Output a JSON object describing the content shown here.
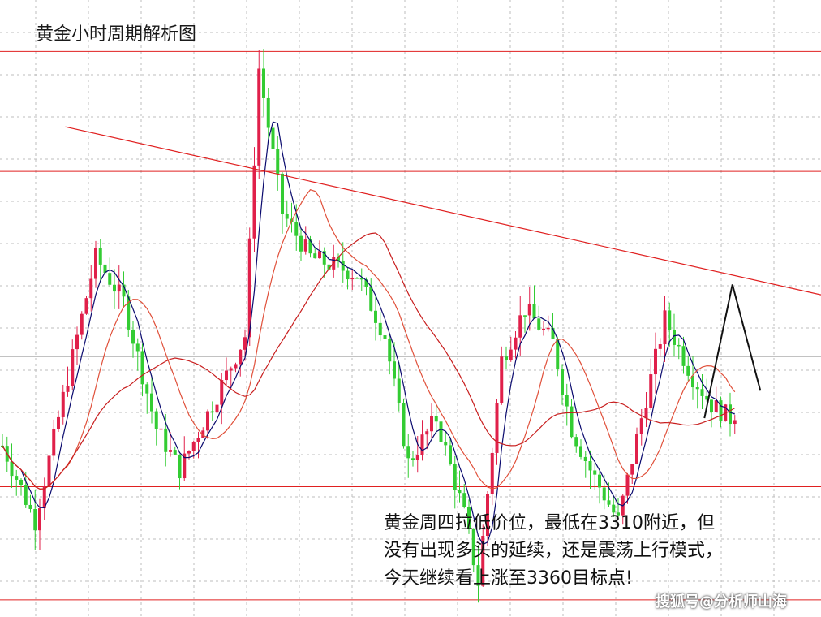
{
  "title": "黄金小时周期解析图",
  "note_lines": [
    "黄金周四拉低价位，最低在3310附近，但",
    "没有出现多头的延续，还是震荡上行模式，",
    "今天继续看上涨至3360目标点!"
  ],
  "watermark": "搜狐号@分析师山海",
  "colors": {
    "up": "#e0204a",
    "down": "#33cc33",
    "ma_fast": "#0a0a6e",
    "ma_mid": "#e0503a",
    "ma_slow": "#c81e1e",
    "level_line": "#e02020",
    "trend_line": "#e02020",
    "projection": "#111111",
    "grid": "#bdbdbd"
  },
  "chart_data": {
    "type": "candlestick",
    "title": "黄金小时周期解析图",
    "y_unit": "price (no axis labels shown)",
    "ylim": [
      3290,
      3470
    ],
    "x_range": [
      0,
      176
    ],
    "grid": true,
    "candles": [],
    "horizontal_levels": [
      3455,
      3420,
      3328,
      3295
    ],
    "trendline": {
      "from": [
        14,
        3433
      ],
      "to": [
        176,
        3384
      ]
    },
    "reference_line": 3366,
    "projection_path": [
      [
        151,
        3348
      ],
      [
        157,
        3387
      ],
      [
        163,
        3356
      ]
    ],
    "moving_averages": [
      "MA fast (dark blue)",
      "MA mid (orange)",
      "MA slow (red)"
    ]
  }
}
